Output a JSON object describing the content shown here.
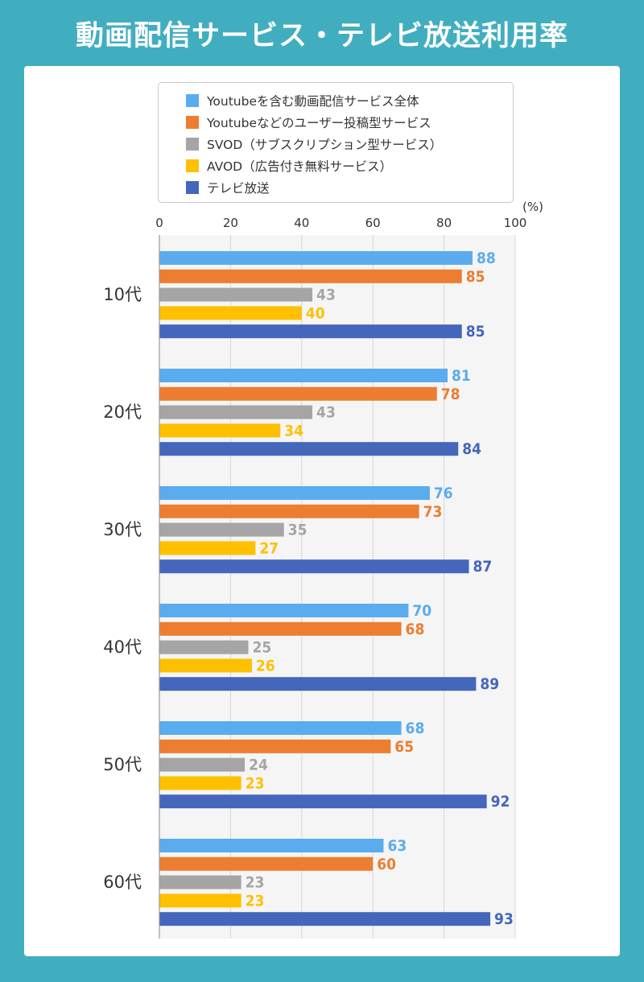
{
  "title": "動画配信サービス・テレビ放送利用率",
  "chart_data": {
    "type": "bar",
    "orientation": "horizontal",
    "unit": "(%)",
    "xlim": [
      0,
      100
    ],
    "ticks": [
      0,
      20,
      40,
      60,
      80,
      100
    ],
    "categories": [
      "10代",
      "20代",
      "30代",
      "40代",
      "50代",
      "60代"
    ],
    "series": [
      {
        "name": "Youtubeを含む動画配信サービス全体",
        "color": "#5aacee",
        "values": [
          88,
          81,
          76,
          70,
          68,
          63
        ]
      },
      {
        "name": "Youtubeなどのユーザー投稿型サービス",
        "color": "#ed7d31",
        "values": [
          85,
          78,
          73,
          68,
          65,
          60
        ]
      },
      {
        "name": "SVOD（サブスクリプション型サービス）",
        "color": "#a5a5a5",
        "values": [
          43,
          43,
          35,
          25,
          24,
          23
        ]
      },
      {
        "name": "AVOD（広告付き無料サービス）",
        "color": "#ffc000",
        "values": [
          40,
          34,
          27,
          26,
          23,
          23
        ]
      },
      {
        "name": "テレビ放送",
        "color": "#4466bb",
        "values": [
          85,
          84,
          87,
          89,
          92,
          93
        ]
      }
    ]
  }
}
